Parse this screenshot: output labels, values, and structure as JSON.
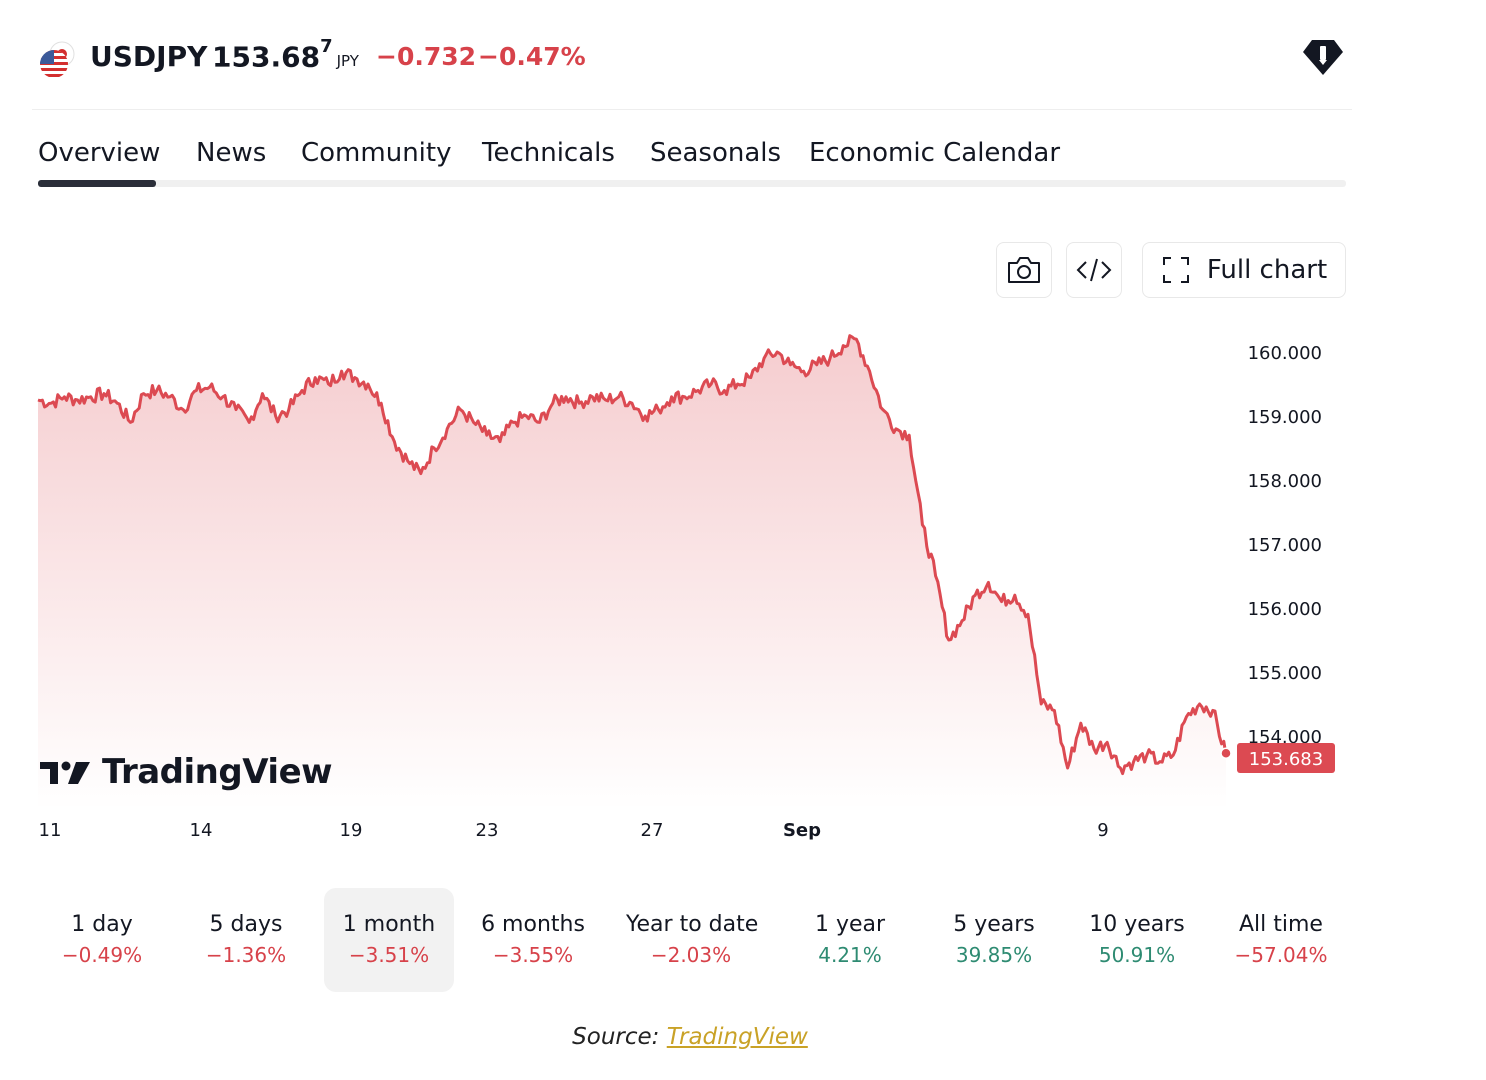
{
  "header": {
    "symbol": "USDJPY",
    "price_main": "153.68",
    "price_sup": "7",
    "currency": "JPY",
    "change_abs": "−0.732",
    "change_pct": "−0.47%"
  },
  "tabs": [
    {
      "label": "Overview",
      "active": true
    },
    {
      "label": "News",
      "active": false
    },
    {
      "label": "Community",
      "active": false
    },
    {
      "label": "Technicals",
      "active": false
    },
    {
      "label": "Seasonals",
      "active": false
    },
    {
      "label": "Economic Calendar",
      "active": false
    }
  ],
  "toolbar": {
    "full_chart_label": "Full chart",
    "icons": [
      "camera-icon",
      "embed-code-icon",
      "fullscreen-icon"
    ]
  },
  "logo": {
    "text": "TradingView"
  },
  "chart_data": {
    "type": "area",
    "x_labels": [
      "11",
      "14",
      "19",
      "23",
      "27",
      "Sep",
      "9"
    ],
    "y_ticks": [
      "160.000",
      "159.000",
      "158.000",
      "157.000",
      "156.000",
      "155.000",
      "154.000"
    ],
    "ylim": [
      152.9,
      160.4
    ],
    "last_price_label": "153.683",
    "line_color": "#dc4a52",
    "series": [
      {
        "values": [
          159.25,
          159.2,
          159.3,
          159.25,
          159.3,
          159.35,
          159.2,
          158.9,
          159.35,
          159.4,
          159.3,
          159.1,
          159.4,
          159.45,
          159.3,
          159.1,
          158.9,
          159.35,
          159.0,
          159.1,
          159.4,
          159.6,
          159.5,
          159.7,
          159.6,
          159.5,
          159.2,
          158.6,
          158.3,
          158.1,
          158.5,
          158.8,
          159.1,
          158.9,
          158.7,
          158.6,
          158.9,
          159.0,
          158.9,
          159.2,
          159.3,
          159.2,
          159.3,
          159.25,
          159.3,
          159.2,
          159.0,
          159.1,
          159.3,
          159.3,
          159.4,
          159.5,
          159.4,
          159.5,
          159.6,
          159.9,
          160.0,
          159.8,
          159.7,
          159.8,
          159.9,
          160.1,
          160.2,
          159.7,
          159.1,
          158.8,
          158.7,
          157.3,
          156.5,
          155.5,
          155.8,
          156.2,
          156.4,
          156.1,
          156.2,
          155.9,
          154.5,
          154.4,
          153.5,
          154.2,
          153.8,
          153.9,
          153.5,
          153.6,
          153.7,
          153.6,
          153.7,
          154.3,
          154.5,
          154.4,
          153.7
        ],
        "color": "#dc4a52"
      }
    ]
  },
  "periods": [
    {
      "label": "1 day",
      "value": "−0.49%",
      "trend": "neg",
      "active": false
    },
    {
      "label": "5 days",
      "value": "−1.36%",
      "trend": "neg",
      "active": false
    },
    {
      "label": "1 month",
      "value": "−3.51%",
      "trend": "neg",
      "active": true
    },
    {
      "label": "6 months",
      "value": "−3.55%",
      "trend": "neg",
      "active": false
    },
    {
      "label": "Year to date",
      "value": "−2.03%",
      "trend": "neg",
      "active": false
    },
    {
      "label": "1 year",
      "value": "4.21%",
      "trend": "pos",
      "active": false
    },
    {
      "label": "5 years",
      "value": "39.85%",
      "trend": "pos",
      "active": false
    },
    {
      "label": "10 years",
      "value": "50.91%",
      "trend": "pos",
      "active": false
    },
    {
      "label": "All time",
      "value": "−57.04%",
      "trend": "neg",
      "active": false
    }
  ],
  "source": {
    "prefix": "Source:",
    "link_text": "TradingView"
  }
}
